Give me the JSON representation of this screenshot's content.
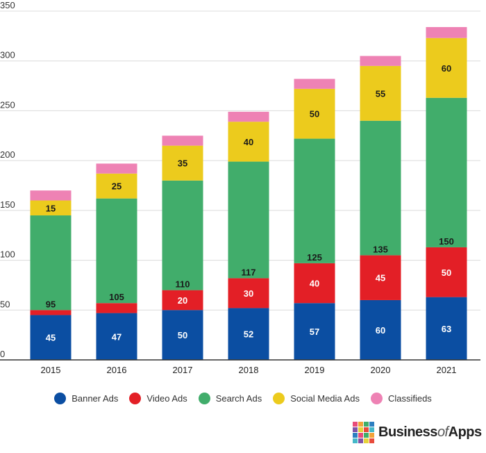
{
  "chart_data": {
    "type": "bar",
    "stacked": true,
    "categories": [
      "2015",
      "2016",
      "2017",
      "2018",
      "2019",
      "2020",
      "2021"
    ],
    "ylim": [
      0,
      350
    ],
    "yticks": [
      0,
      50,
      100,
      150,
      200,
      250,
      300,
      350
    ],
    "grid": true,
    "legend_position": "bottom",
    "series": [
      {
        "name": "Banner Ads",
        "color": "#0b4ea2",
        "label_color": "#ffffff",
        "values": [
          45,
          47,
          50,
          52,
          57,
          60,
          63
        ],
        "labels": [
          "45",
          "47",
          "50",
          "52",
          "57",
          "60",
          "63"
        ]
      },
      {
        "name": "Video Ads",
        "color": "#e31f26",
        "label_color": "#ffffff",
        "values": [
          5,
          10,
          20,
          30,
          40,
          45,
          50
        ],
        "labels": [
          "",
          "",
          "20",
          "30",
          "40",
          "45",
          "50"
        ]
      },
      {
        "name": "Search Ads",
        "color": "#41ad6b",
        "label_color": "#1a1a1a",
        "label_anchor": "bottom",
        "values": [
          95,
          105,
          110,
          117,
          125,
          135,
          150
        ],
        "labels": [
          "95",
          "105",
          "110",
          "117",
          "125",
          "135",
          "150"
        ]
      },
      {
        "name": "Social Media Ads",
        "color": "#eccb1d",
        "label_color": "#1a1a1a",
        "values": [
          15,
          25,
          35,
          40,
          50,
          55,
          60
        ],
        "labels": [
          "15",
          "25",
          "35",
          "40",
          "50",
          "55",
          "60"
        ]
      },
      {
        "name": "Classifieds",
        "color": "#ee82b4",
        "label_color": "#1a1a1a",
        "values": [
          10,
          10,
          10,
          10,
          10,
          10,
          11
        ],
        "labels": [
          "",
          "",
          "",
          "",
          "",
          "",
          ""
        ]
      }
    ]
  },
  "legend": [
    {
      "label": "Banner Ads",
      "color": "#0b4ea2"
    },
    {
      "label": "Video Ads",
      "color": "#e31f26"
    },
    {
      "label": "Search Ads",
      "color": "#41ad6b"
    },
    {
      "label": "Social Media Ads",
      "color": "#eccb1d"
    },
    {
      "label": "Classifieds",
      "color": "#ee82b4"
    }
  ],
  "brand": {
    "name_part1": "Business",
    "name_part2": "of",
    "name_part3": "Apps",
    "grid_colors": [
      "#e84b7a",
      "#f2a33a",
      "#3fae6a",
      "#2c7fc1",
      "#7f53a8",
      "#e6d23a",
      "#e84b3c",
      "#45b8c9",
      "#2c7fc1",
      "#e84b7a",
      "#3fae6a",
      "#f2a33a",
      "#45b8c9",
      "#7f53a8",
      "#e6d23a",
      "#e84b3c"
    ]
  }
}
